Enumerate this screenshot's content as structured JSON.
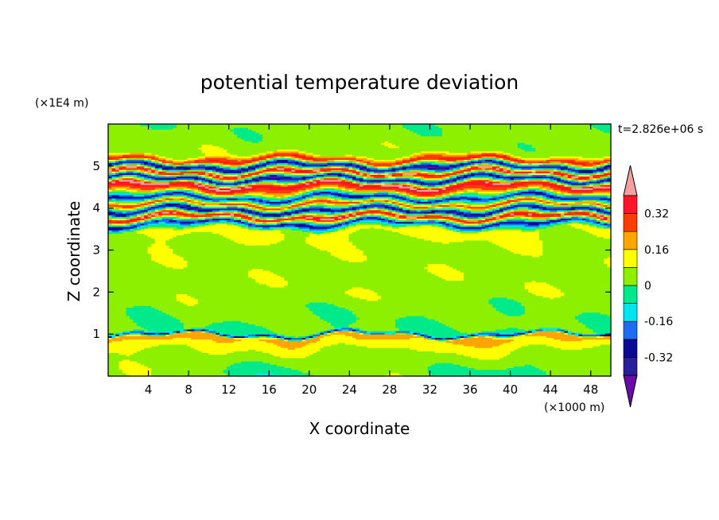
{
  "chart_data": {
    "type": "heatmap",
    "title": "potential temperature deviation",
    "xlabel": "X coordinate",
    "ylabel": "Z coordinate",
    "x_unit": "(×1000 m)",
    "y_unit": "(×1E4 m)",
    "time_label": "t=2.826e+06 s",
    "x_ticks": [
      "4",
      "8",
      "12",
      "16",
      "20",
      "24",
      "28",
      "32",
      "36",
      "40",
      "44",
      "48"
    ],
    "y_ticks": [
      "1",
      "2",
      "3",
      "4",
      "5"
    ],
    "xlim": [
      0,
      50
    ],
    "ylim": [
      0,
      6
    ],
    "colorbar": {
      "levels": [
        -0.4,
        -0.32,
        -0.24,
        -0.16,
        -0.08,
        0,
        0.08,
        0.16,
        0.24,
        0.32,
        0.4
      ],
      "tick_labels": [
        "0.32",
        "0.16",
        "0",
        "-0.16",
        "-0.32"
      ],
      "tick_values": [
        0.32,
        0.16,
        0,
        -0.16,
        -0.32
      ],
      "colors": [
        "#6a0aa8",
        "#2a1f9a",
        "#0a0a96",
        "#1e6cf0",
        "#00e6f0",
        "#00ea8c",
        "#8cf000",
        "#ffff00",
        "#ffa500",
        "#ff3c00",
        "#ff1428",
        "#f4a0a0"
      ],
      "extend": "both"
    },
    "bands": [
      {
        "z": 0.0,
        "value": 0.0
      },
      {
        "z": 0.5,
        "value": 0.05
      },
      {
        "z": 0.95,
        "value": 0.18
      },
      {
        "z": 1.0,
        "value": -0.3
      },
      {
        "z": 1.05,
        "value": 0.0
      },
      {
        "z": 2.0,
        "value": 0.05
      },
      {
        "z": 3.0,
        "value": 0.05
      },
      {
        "z": 3.5,
        "value": 0.1
      },
      {
        "z": 3.65,
        "value": -0.3
      },
      {
        "z": 3.8,
        "value": 0.42
      },
      {
        "z": 3.95,
        "value": -0.38
      },
      {
        "z": 4.1,
        "value": 0.3
      },
      {
        "z": 4.25,
        "value": -0.3
      },
      {
        "z": 4.4,
        "value": 0.2
      },
      {
        "z": 4.55,
        "value": 0.42
      },
      {
        "z": 4.7,
        "value": -0.38
      },
      {
        "z": 4.85,
        "value": 0.42
      },
      {
        "z": 5.0,
        "value": -0.4
      },
      {
        "z": 5.15,
        "value": 0.35
      },
      {
        "z": 5.3,
        "value": 0.05
      },
      {
        "z": 6.0,
        "value": 0.02
      }
    ]
  }
}
